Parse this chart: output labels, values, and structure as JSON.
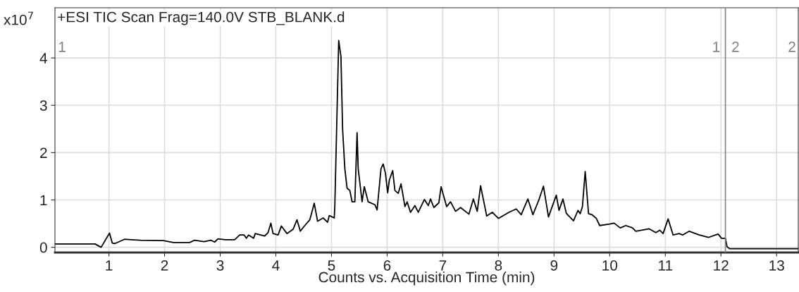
{
  "chart_data": {
    "type": "line",
    "title": "+ESI TIC Scan Frag=140.0V STB_BLANK.d",
    "xlabel": "Counts vs. Acquisition Time (min)",
    "ylabel": "x10$^{7}$",
    "xlim": [
      0.03,
      13.39
    ],
    "ylim": [
      -0.11,
      5.06
    ],
    "xticks": [
      1,
      2,
      3,
      4,
      5,
      6,
      7,
      8,
      9,
      10,
      11,
      12,
      13
    ],
    "yticks": [
      0,
      1,
      2,
      3,
      4
    ],
    "grid": true,
    "legend": false,
    "marker": "none",
    "line_style": "solid",
    "ref_lines": [
      {
        "axis": "x",
        "value": 12.08,
        "color": "#808080"
      }
    ],
    "annotations": [
      "1",
      "1",
      "2",
      "2"
    ],
    "series": [
      {
        "color": "#000000",
        "x": [
          0.03,
          0.75,
          0.86,
          1.01,
          1.06,
          1.11,
          1.28,
          1.4,
          1.57,
          1.98,
          2.16,
          2.45,
          2.54,
          2.71,
          2.83,
          2.9,
          2.96,
          3.09,
          3.26,
          3.35,
          3.43,
          3.47,
          3.51,
          3.6,
          3.63,
          3.8,
          3.86,
          3.91,
          3.95,
          4.04,
          4.1,
          4.2,
          4.31,
          4.38,
          4.44,
          4.52,
          4.61,
          4.69,
          4.75,
          4.85,
          4.93,
          4.96,
          5.05,
          5.06,
          5.13,
          5.17,
          5.2,
          5.24,
          5.28,
          5.33,
          5.37,
          5.42,
          5.46,
          5.48,
          5.55,
          5.59,
          5.66,
          5.78,
          5.82,
          5.89,
          5.93,
          5.97,
          6.01,
          6.04,
          6.1,
          6.14,
          6.2,
          6.25,
          6.32,
          6.36,
          6.42,
          6.5,
          6.56,
          6.67,
          6.74,
          6.78,
          6.84,
          6.93,
          6.97,
          7.07,
          7.14,
          7.23,
          7.32,
          7.47,
          7.55,
          7.62,
          7.68,
          7.79,
          7.89,
          8.0,
          8.19,
          8.32,
          8.41,
          8.53,
          8.62,
          8.73,
          8.81,
          8.9,
          9.04,
          9.09,
          9.16,
          9.22,
          9.35,
          9.43,
          9.47,
          9.51,
          9.56,
          9.62,
          9.68,
          9.76,
          9.82,
          10.0,
          10.08,
          10.19,
          10.29,
          10.41,
          10.47,
          10.71,
          10.83,
          10.9,
          10.96,
          11.05,
          11.14,
          11.25,
          11.31,
          11.43,
          11.61,
          11.78,
          11.95,
          12.01,
          12.08,
          12.11,
          12.16,
          13.39
        ],
        "values": [
          0.07,
          0.07,
          0.0,
          0.3,
          0.09,
          0.08,
          0.17,
          0.16,
          0.15,
          0.14,
          0.1,
          0.1,
          0.15,
          0.12,
          0.15,
          0.11,
          0.18,
          0.16,
          0.16,
          0.26,
          0.26,
          0.19,
          0.26,
          0.19,
          0.29,
          0.24,
          0.31,
          0.51,
          0.29,
          0.26,
          0.45,
          0.29,
          0.38,
          0.58,
          0.34,
          0.46,
          0.58,
          0.93,
          0.55,
          0.62,
          0.53,
          0.67,
          0.62,
          0.87,
          4.37,
          4.03,
          2.49,
          1.66,
          1.25,
          1.2,
          0.96,
          0.96,
          2.42,
          1.66,
          0.96,
          1.28,
          0.96,
          0.9,
          0.79,
          1.66,
          1.76,
          1.56,
          1.15,
          1.42,
          1.62,
          1.2,
          1.14,
          1.34,
          0.86,
          0.96,
          0.74,
          0.88,
          0.74,
          1.01,
          0.88,
          1.02,
          0.84,
          0.94,
          1.28,
          0.86,
          0.96,
          0.76,
          0.84,
          0.7,
          1.02,
          0.76,
          1.3,
          0.66,
          0.74,
          0.61,
          0.74,
          0.81,
          0.69,
          1.02,
          0.69,
          1.01,
          1.29,
          0.64,
          1.1,
          0.78,
          1.02,
          0.72,
          0.56,
          0.78,
          0.71,
          0.86,
          1.6,
          0.71,
          0.69,
          0.61,
          0.46,
          0.49,
          0.51,
          0.41,
          0.46,
          0.41,
          0.34,
          0.39,
          0.31,
          0.36,
          0.29,
          0.6,
          0.26,
          0.29,
          0.26,
          0.34,
          0.26,
          0.21,
          0.28,
          0.19,
          0.19,
          0.01,
          -0.03,
          -0.03
        ]
      }
    ]
  }
}
